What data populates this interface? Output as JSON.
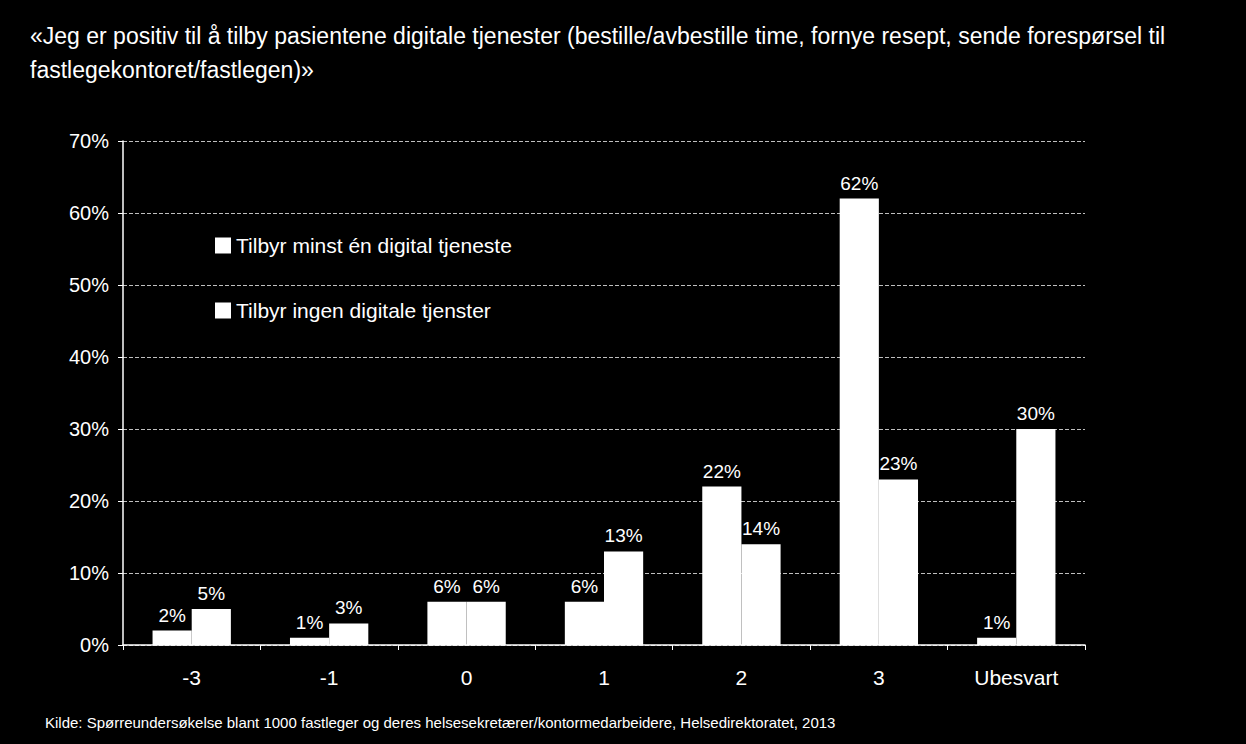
{
  "chart_data": {
    "type": "bar",
    "title": "«Jeg er positiv til å tilby pasientene digitale tjenester (bestille/avbestille time, fornye resept, sende forespørsel til fastlegekontoret/fastlegen)»",
    "source": "Kilde: Spørreundersøkelse blant 1000 fastleger og deres helsesekretærer/kontormedarbeidere, Helsedirektoratet, 2013",
    "categories": [
      "-3",
      "-1",
      "0",
      "1",
      "2",
      "3",
      "Ubesvart"
    ],
    "series": [
      {
        "name": "Tilbyr minst én digital tjeneste",
        "color": "#ffffff",
        "values": [
          2,
          1,
          6,
          6,
          22,
          62,
          1
        ],
        "value_labels": [
          "2%",
          "1%",
          "6%",
          "6%",
          "22%",
          "62%",
          "1%"
        ]
      },
      {
        "name": "Tilbyr ingen digitale tjenster",
        "color": "#ffffff",
        "values": [
          5,
          3,
          6,
          13,
          14,
          23,
          30
        ],
        "value_labels": [
          "5%",
          "3%",
          "6%",
          "13%",
          "14%",
          "23%",
          "30%"
        ]
      }
    ],
    "ylim": [
      0,
      70
    ],
    "yticks": [
      {
        "value": 0,
        "label": "0%"
      },
      {
        "value": 10,
        "label": "10%"
      },
      {
        "value": 20,
        "label": "20%"
      },
      {
        "value": 30,
        "label": "30%"
      },
      {
        "value": 40,
        "label": "40%"
      },
      {
        "value": 50,
        "label": "50%"
      },
      {
        "value": 60,
        "label": "60%"
      },
      {
        "value": 70,
        "label": "70%"
      }
    ],
    "grid": true,
    "legend": "upper left",
    "data_labels": true
  }
}
